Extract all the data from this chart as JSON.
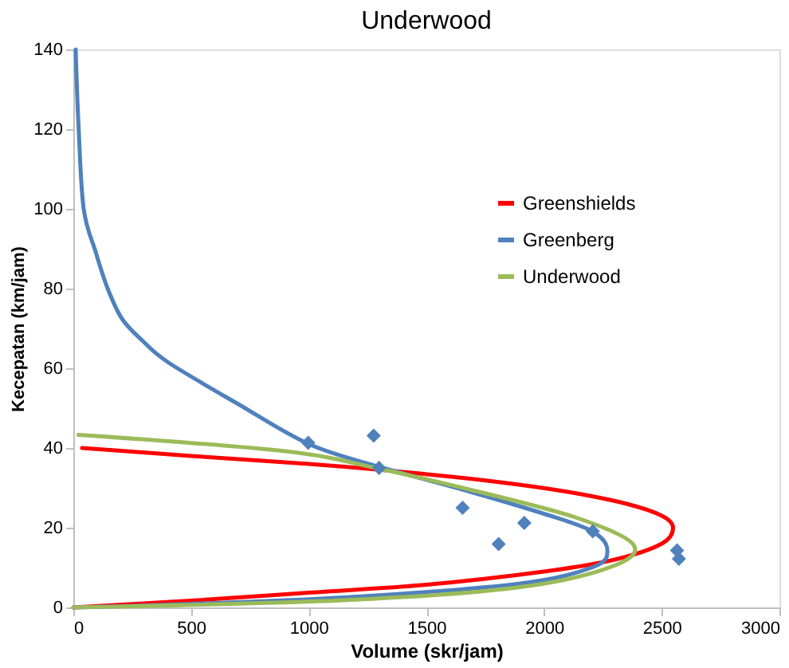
{
  "chart_data": {
    "type": "line",
    "title": "Underwood",
    "xlabel": "Volume (skr/jam)",
    "ylabel": "Kecepatan (km/jam)",
    "xlim": [
      0,
      3000
    ],
    "xticks": [
      0,
      500,
      1000,
      1500,
      2000,
      2500,
      3000
    ],
    "ylim": [
      0,
      140
    ],
    "yticks": [
      0,
      20,
      40,
      60,
      80,
      100,
      120,
      140
    ],
    "grid": false,
    "legend": "top right",
    "marker": "none",
    "line_style": "solid",
    "series": [
      {
        "name": "Greenshields",
        "color": "#ff0000",
        "x": [
          0,
          500,
          1000,
          1500,
          2000,
          2300,
          2500,
          2548,
          2500,
          2350,
          2100,
          1800,
          1400,
          1000,
          500,
          37
        ],
        "values": [
          0,
          1.7,
          3.7,
          5.7,
          9,
          12,
          16,
          20,
          23,
          26,
          29,
          31.5,
          34,
          36,
          38,
          40
        ]
      },
      {
        "name": "Greenberg",
        "color": "#4f81bd",
        "x": [
          0,
          405,
          1146,
          1886,
          2207,
          2269,
          2207,
          2010,
          1640,
          1299,
          1000,
          701,
          405,
          294,
          207,
          146,
          96,
          44,
          22,
          10
        ],
        "values": [
          0,
          0.7,
          2.5,
          5.9,
          10.1,
          14.3,
          19,
          23.3,
          29.8,
          35.3,
          41,
          51,
          61.4,
          66.9,
          72.4,
          80,
          89,
          100,
          121,
          140
        ]
      },
      {
        "name": "Underwood",
        "color": "#9bbb59",
        "x": [
          0,
          1146,
          1886,
          2281,
          2380,
          2133,
          1689,
          1299,
          899,
          22
        ],
        "values": [
          0,
          1.8,
          5,
          10.1,
          15.7,
          22.6,
          29.5,
          34.8,
          39.2,
          43.3
        ]
      },
      {
        "type": "scatter",
        "marker": "diamond",
        "color": "#4f81bd",
        "x": [
          998,
          1276,
          1299,
          1654,
          1916,
          1807,
          2207,
          2565,
          2573
        ],
        "values": [
          41.3,
          43.1,
          35,
          25,
          21.2,
          15.9,
          19.1,
          14.3,
          12.2
        ]
      }
    ]
  }
}
